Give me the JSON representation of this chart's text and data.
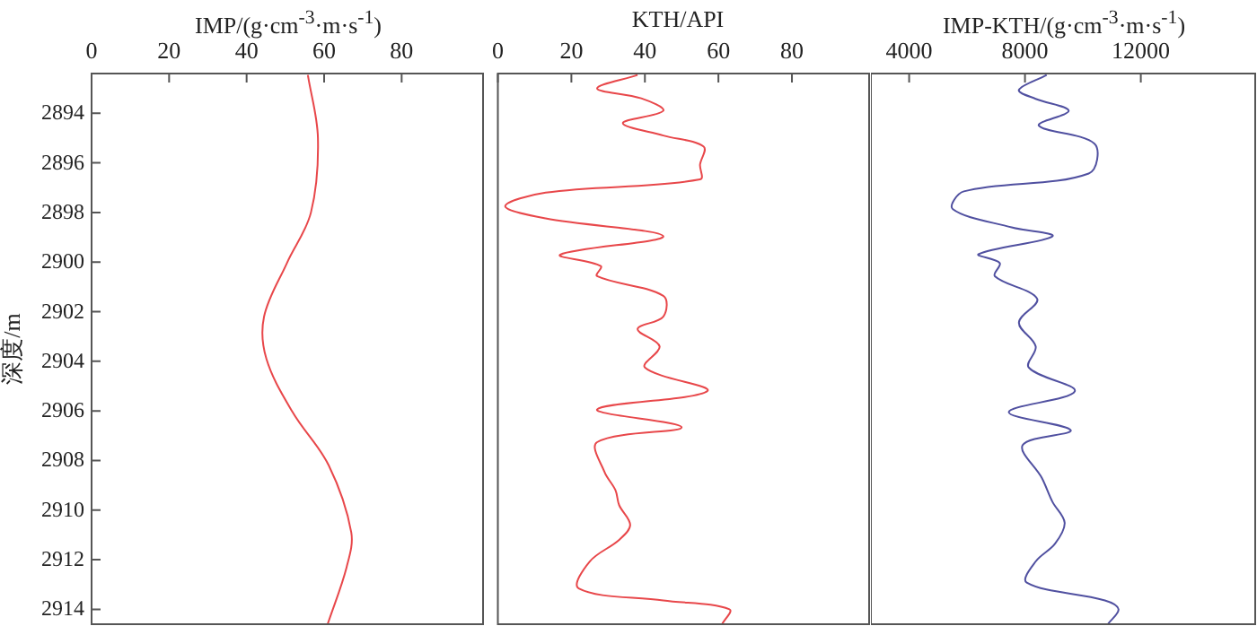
{
  "chart_data": [
    {
      "type": "line",
      "orientation": "horizontal",
      "xlabel": "IMP/(g·cm$^{-3}$·m·s$^{-1}$)",
      "ylabel": "深度/m",
      "xlim": [
        0,
        101
      ],
      "xticks": [
        0,
        20,
        40,
        60,
        80
      ],
      "ylim": [
        2914.6,
        2892.4
      ],
      "yticks": [
        2894,
        2896,
        2898,
        2900,
        2902,
        2904,
        2906,
        2908,
        2910,
        2912,
        2914
      ],
      "grid": false,
      "legend": false,
      "marker": "none",
      "line_style": "solid",
      "series": [
        {
          "color": "#e8474a",
          "values": [
            55.8,
            58.4,
            56.6,
            50.4,
            44.5,
            45.1,
            51.9,
            61.2,
            67.0,
            65.8,
            60.9
          ],
          "x": [
            2892.46,
            2895.0,
            2898.0,
            2900.04,
            2902.2,
            2903.9,
            2906.06,
            2908.2,
            2910.9,
            2912.3,
            2914.6
          ]
        }
      ]
    },
    {
      "type": "line",
      "orientation": "horizontal",
      "xlabel": "KTH/API",
      "xlim": [
        0,
        101
      ],
      "xticks": [
        0,
        20,
        40,
        60,
        80
      ],
      "ylim": [
        2914.6,
        2892.4
      ],
      "yticks": [
        2894,
        2896,
        2898,
        2900,
        2902,
        2904,
        2906,
        2908,
        2910,
        2912,
        2914
      ],
      "tick_labels": "x",
      "grid": false,
      "legend": false,
      "marker": "none",
      "line_style": "solid",
      "series": [
        {
          "color": "#e8474a",
          "values": [
            38,
            27,
            39,
            45,
            34,
            45,
            56,
            55,
            55,
            13,
            2,
            13,
            45,
            17,
            28,
            27,
            45,
            45,
            38,
            44,
            40,
            57,
            27,
            50,
            27,
            29,
            32,
            33,
            36,
            33,
            25,
            22,
            45,
            63,
            61
          ],
          "x": [
            2892.46,
            2893.0,
            2893.4,
            2893.9,
            2894.4,
            2894.9,
            2895.35,
            2896.07,
            2896.67,
            2897.2,
            2897.75,
            2898.24,
            2898.96,
            2899.7,
            2900.16,
            2900.57,
            2901.36,
            2902.2,
            2902.7,
            2903.4,
            2904.25,
            2905.2,
            2905.94,
            2906.66,
            2907.26,
            2908.46,
            2909.2,
            2909.8,
            2910.6,
            2911.2,
            2912.07,
            2913.16,
            2913.64,
            2914.0,
            2914.6
          ]
        }
      ]
    },
    {
      "type": "line",
      "orientation": "horizontal",
      "xlabel": "IMP-KTH/(g·cm$^{-3}$·m·s$^{-1}$)",
      "xlim": [
        2680,
        15950
      ],
      "xticks": [
        4000,
        8000,
        12000
      ],
      "ylim": [
        2914.6,
        2892.4
      ],
      "yticks": [
        2894,
        2896,
        2898,
        2900,
        2902,
        2904,
        2906,
        2908,
        2910,
        2912,
        2914
      ],
      "tick_labels": "x",
      "grid": false,
      "legend": false,
      "marker": "none",
      "line_style": "solid",
      "series": [
        {
          "color": "#5050a0",
          "values": [
            8750,
            7790,
            8370,
            9510,
            8480,
            10400,
            10200,
            5890,
            5510,
            7540,
            8950,
            6400,
            7130,
            6960,
            8420,
            7790,
            8370,
            8130,
            9720,
            7440,
            9580,
            7920,
            8580,
            8950,
            9370,
            9040,
            8370,
            8060,
            10760,
            11230,
            10860
          ],
          "x": [
            2892.46,
            2893.06,
            2893.42,
            2893.9,
            2894.5,
            2895.23,
            2896.43,
            2897.15,
            2897.87,
            2898.6,
            2898.96,
            2899.68,
            2900.04,
            2900.57,
            2901.48,
            2902.44,
            2903.4,
            2904.25,
            2905.21,
            2906.05,
            2906.78,
            2907.38,
            2908.7,
            2909.67,
            2910.51,
            2911.35,
            2912.07,
            2912.92,
            2913.64,
            2914.0,
            2914.6
          ]
        }
      ]
    }
  ]
}
